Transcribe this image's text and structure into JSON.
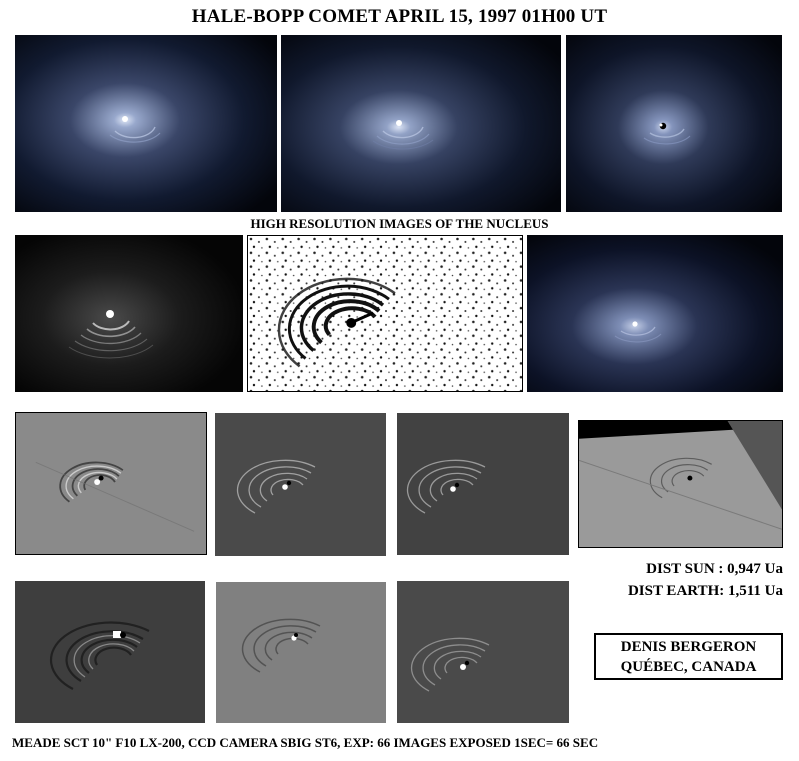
{
  "title": "HALE-BOPP COMET  APRIL 15, 1997  01H00 UT",
  "subtitle": "HIGH RESOLUTION IMAGES OF THE NUCLEUS",
  "dist_sun": "DIST SUN : 0,947 Ua",
  "dist_earth": "DIST EARTH: 1,511 Ua",
  "credit": {
    "name": "DENIS BERGERON",
    "location": "QUÉBEC, CANADA"
  },
  "footer": "MEADE SCT 10\" F10 LX-200,  CCD CAMERA SBIG ST6,  EXP: 66 IMAGES EXPOSED 1SEC= 66 SEC",
  "images": {
    "row1": [
      "glow",
      "glow",
      "glow"
    ],
    "row2": [
      "dark-enhanced",
      "inverted",
      "glow"
    ],
    "row3": [
      "gray-filtered",
      "gray-filtered",
      "gray-filtered",
      "gray-rotated"
    ],
    "row4": [
      "gray-filtered",
      "gray-filtered",
      "gray-filtered"
    ]
  },
  "colors": {
    "glow_core": "#ffffff",
    "glow_halo": "#8e9fc4",
    "sky": "#050812",
    "gray_bg": "#555555"
  }
}
